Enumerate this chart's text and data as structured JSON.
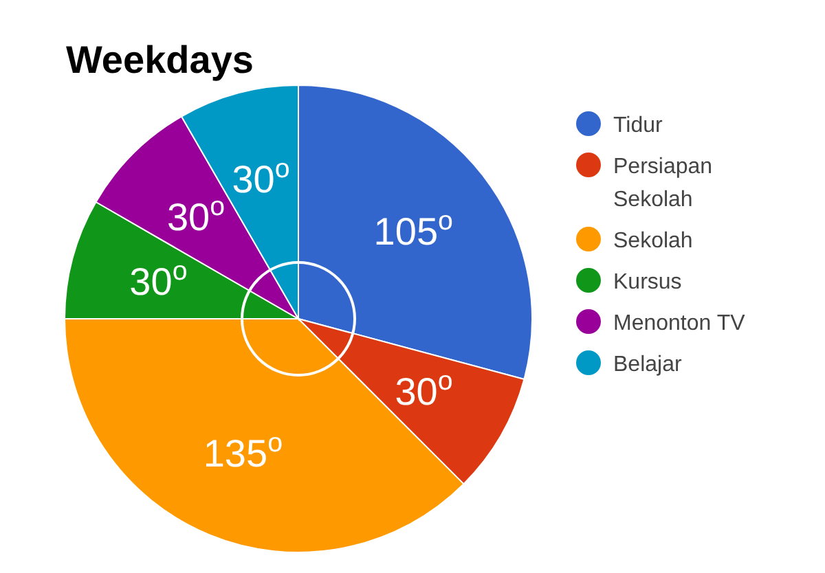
{
  "chart_data": {
    "type": "pie",
    "title": "Weekdays",
    "categories": [
      "Tidur",
      "Persiapan Sekolah",
      "Sekolah",
      "Kursus",
      "Menonton TV",
      "Belajar"
    ],
    "values": [
      105,
      30,
      135,
      30,
      30,
      30
    ],
    "colors": [
      "#3366cc",
      "#dc3912",
      "#ff9900",
      "#109618",
      "#990099",
      "#0099c6"
    ],
    "value_labels": [
      "105$^{o}$",
      "30$^{o}$",
      "135$^{o}$",
      "30$^{o}$",
      "30$^{o}$",
      "30$^{o}$"
    ],
    "legend": "right"
  }
}
